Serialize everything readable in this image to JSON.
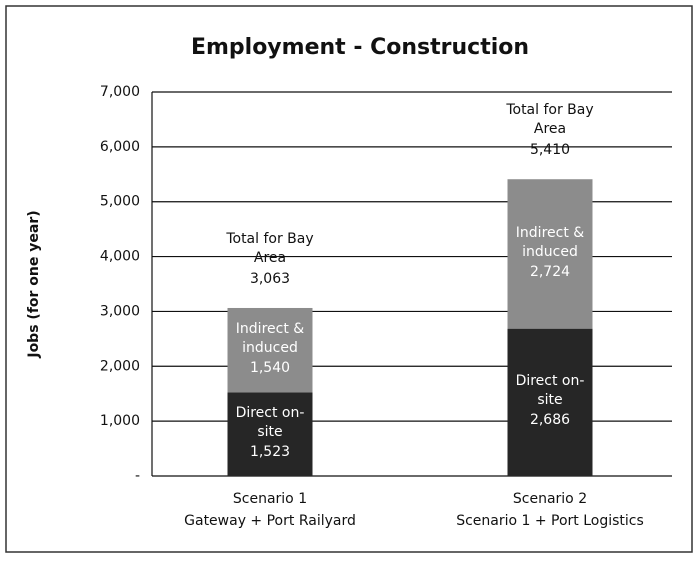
{
  "chart_data": {
    "type": "stacked_bar",
    "title": "Employment - Construction",
    "y_label": "Jobs (for one year)",
    "categories": [
      "Scenario 1\nGateway + Port Railyard",
      "Scenario 2\nScenario 1 + Port Logistics"
    ],
    "series": [
      {
        "name": "Direct on-site",
        "color": "#262626",
        "values": [
          1523,
          2686
        ],
        "value_labels": [
          "1,523",
          "2,686"
        ]
      },
      {
        "name": "Indirect & induced",
        "color": "#8c8c8c",
        "values": [
          1540,
          2724
        ],
        "value_labels": [
          "1,540",
          "2,724"
        ]
      }
    ],
    "total_caption": "Total for Bay Area",
    "total_labels": [
      "3,063",
      "5,410"
    ],
    "ylim": [
      0,
      7000
    ],
    "yticks": [
      {
        "value": 0,
        "label": "-"
      },
      {
        "value": 1000,
        "label": "1,000"
      },
      {
        "value": 2000,
        "label": "2,000"
      },
      {
        "value": 3000,
        "label": "3,000"
      },
      {
        "value": 4000,
        "label": "4,000"
      },
      {
        "value": 5000,
        "label": "5,000"
      },
      {
        "value": 6000,
        "label": "6,000"
      },
      {
        "value": 7000,
        "label": "7,000"
      }
    ],
    "grid": true
  }
}
